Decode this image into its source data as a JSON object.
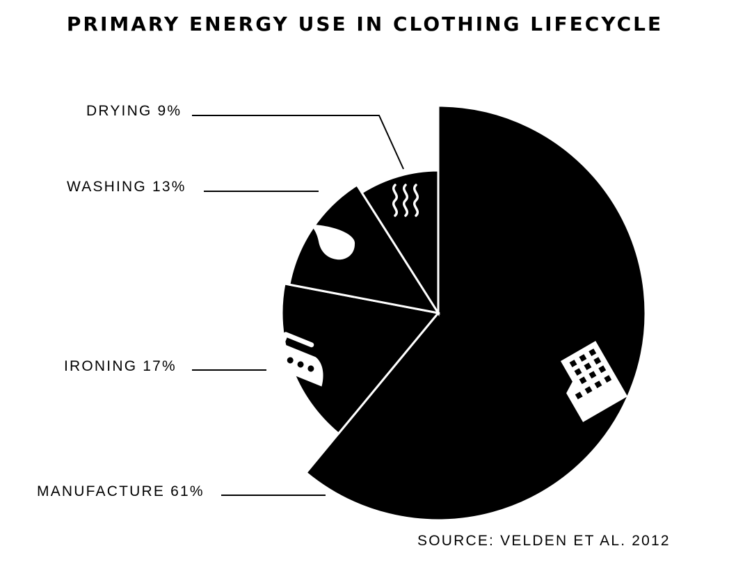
{
  "title": "PRIMARY ENERGY USE IN CLOTHING LIFECYCLE",
  "source": "SOURCE: VELDEN ET AL. 2012",
  "chart_data": {
    "type": "pie",
    "title": "PRIMARY ENERGY USE IN CLOTHING LIFECYCLE",
    "unit": "%",
    "slices": [
      {
        "label": "MANUFACTURE",
        "value": 61,
        "display": "MANUFACTURE 61%",
        "icon": "factory-icon"
      },
      {
        "label": "IRONING",
        "value": 17,
        "display": "IRONING 17%",
        "icon": "iron-icon"
      },
      {
        "label": "WASHING",
        "value": 13,
        "display": "WASHING 13%",
        "icon": "water-drop-icon"
      },
      {
        "label": "DRYING",
        "value": 9,
        "display": "DRYING 9%",
        "icon": "steam-icon"
      }
    ],
    "colors": {
      "slice": "#000000",
      "separator": "#ffffff",
      "icon": "#ffffff"
    },
    "legend": "none",
    "exploded": true
  }
}
